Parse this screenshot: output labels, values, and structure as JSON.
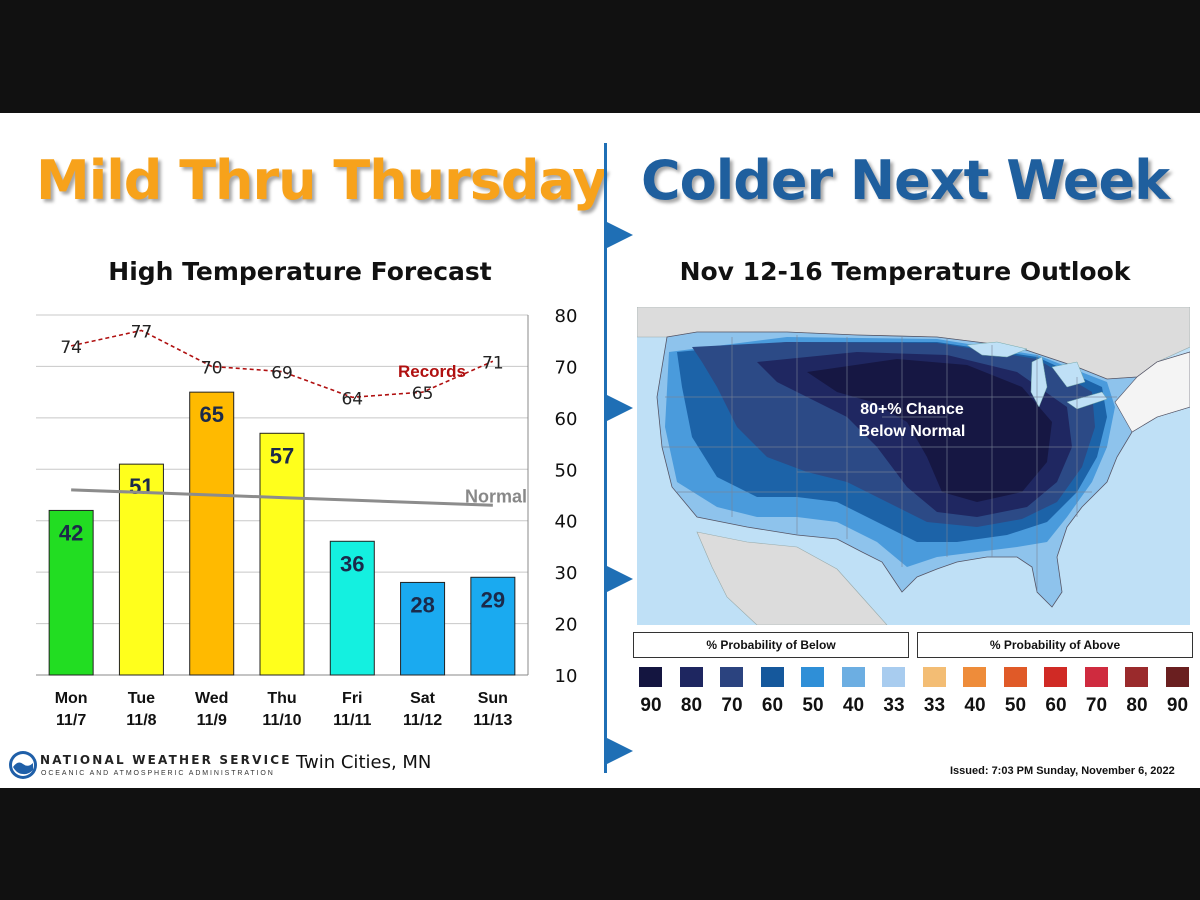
{
  "left_panel": {
    "headline": "Mild Thru Thursday",
    "chart_title": "High Temperature Forecast"
  },
  "right_panel": {
    "headline": "Colder Next Week",
    "outlook_title": "Nov 12-16 Temperature Outlook",
    "map_annotation": [
      "80+% Chance",
      "Below Normal"
    ],
    "legend": {
      "below_header": "% Probability of Below",
      "above_header": "% Probability of Above",
      "below_values": [
        "90",
        "80",
        "70",
        "60",
        "50",
        "40",
        "33"
      ],
      "above_values": [
        "33",
        "40",
        "50",
        "60",
        "70",
        "80",
        "90"
      ],
      "below_colors": [
        "#141540",
        "#1e2660",
        "#2b437f",
        "#15589c",
        "#2f8fd7",
        "#6caee2",
        "#a8ccef"
      ],
      "above_colors": [
        "#f3bd74",
        "#ee8c3a",
        "#e05a28",
        "#d02a25",
        "#cf2b3f",
        "#9a2a2c",
        "#6a1f20"
      ]
    },
    "issued": "Issued: 7:03 PM Sunday, November 6, 2022"
  },
  "footer": {
    "agency": "NATIONAL WEATHER SERVICE",
    "agency_sub": "OCEANIC AND ATMOSPHERIC ADMINISTRATION",
    "location": "Twin Cities, MN"
  },
  "chart_data": {
    "type": "bar",
    "title": "High Temperature Forecast",
    "xlabel": "",
    "ylabel": "",
    "ylim": [
      10,
      80
    ],
    "yticks": [
      10,
      20,
      30,
      40,
      50,
      60,
      70,
      80
    ],
    "grid": true,
    "categories": [
      {
        "day": "Mon",
        "date": "11/7"
      },
      {
        "day": "Tue",
        "date": "11/8"
      },
      {
        "day": "Wed",
        "date": "11/9"
      },
      {
        "day": "Thu",
        "date": "11/10"
      },
      {
        "day": "Fri",
        "date": "11/11"
      },
      {
        "day": "Sat",
        "date": "11/12"
      },
      {
        "day": "Sun",
        "date": "11/13"
      }
    ],
    "series": [
      {
        "name": "",
        "type": "bar",
        "values": [
          42,
          51,
          65,
          57,
          36,
          28,
          29
        ],
        "colors": [
          "#22dd22",
          "#ffff1c",
          "#ffba00",
          "#ffff1c",
          "#14f0e0",
          "#1aaaf0",
          "#1aaaf0"
        ]
      },
      {
        "name": "Records",
        "type": "line",
        "style": "dashed",
        "color": "#b01010",
        "values": [
          74,
          77,
          70,
          69,
          64,
          65,
          71
        ]
      },
      {
        "name": "Normal",
        "type": "line",
        "color": "#8c8c8c",
        "values": [
          46,
          45.5,
          45,
          44.5,
          44,
          43.5,
          43
        ]
      }
    ]
  }
}
